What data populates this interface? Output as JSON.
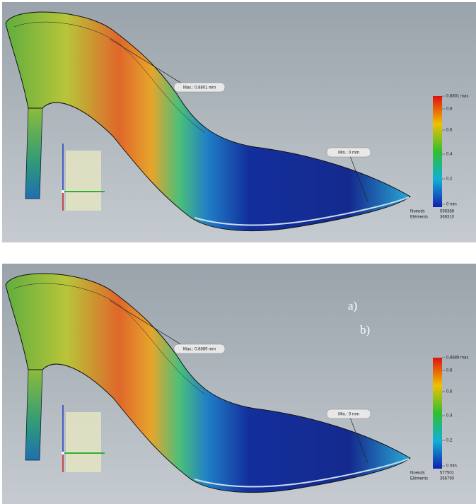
{
  "labels": {
    "a": "a)",
    "b": "b)"
  },
  "panels": [
    {
      "max_label": "Max.: 0.8801 mm",
      "min_label": "Min.: 0 mm",
      "legend": [
        "0.8801 max",
        "0.8",
        "0.6",
        "0.4",
        "0.2",
        "0 min"
      ],
      "stats": [
        [
          "Noeuds",
          "596388"
        ],
        [
          "Eléments",
          "369310"
        ]
      ]
    },
    {
      "max_label": "Max.: 0.8889 mm",
      "min_label": "Min.: 0 mm",
      "legend": [
        "0.8889 max",
        "0.8",
        "0.6",
        "0.4",
        "0.2",
        "0 min."
      ],
      "stats": [
        [
          "Noeuds",
          "577501"
        ],
        [
          "Eléments",
          "356790"
        ]
      ]
    }
  ]
}
